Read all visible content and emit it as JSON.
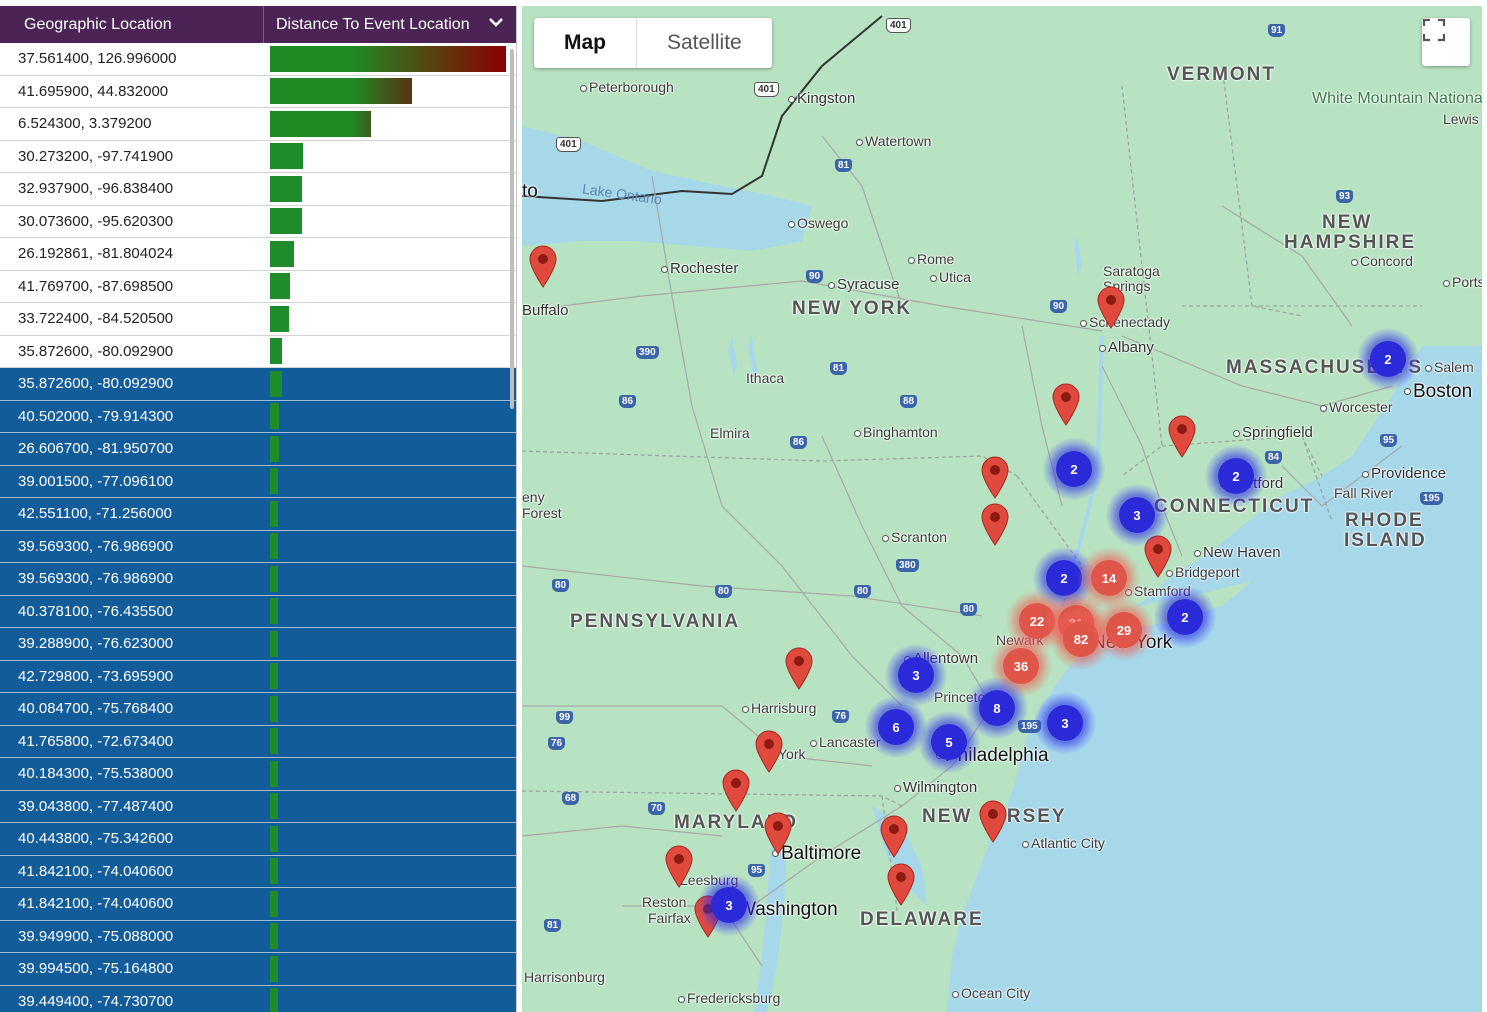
{
  "table": {
    "col_location": "Geographic Location",
    "col_distance": "Distance To Event Location",
    "rows": [
      {
        "coord": "37.561400, 126.996000",
        "value": 1.0,
        "selected": false
      },
      {
        "coord": "41.695900, 44.832000",
        "value": 0.6,
        "selected": false
      },
      {
        "coord": "6.524300, 3.379200",
        "value": 0.43,
        "selected": false
      },
      {
        "coord": "30.273200, -97.741900",
        "value": 0.14,
        "selected": false
      },
      {
        "coord": "32.937900, -96.838400",
        "value": 0.135,
        "selected": false
      },
      {
        "coord": "30.073600, -95.620300",
        "value": 0.135,
        "selected": false
      },
      {
        "coord": "26.192861, -81.804024",
        "value": 0.1,
        "selected": false
      },
      {
        "coord": "41.769700, -87.698500",
        "value": 0.085,
        "selected": false
      },
      {
        "coord": "33.722400, -84.520500",
        "value": 0.08,
        "selected": false
      },
      {
        "coord": "35.872600, -80.092900",
        "value": 0.05,
        "selected": false
      },
      {
        "coord": "35.872600, -80.092900",
        "value": 0.05,
        "selected": true
      },
      {
        "coord": "40.502000, -79.914300",
        "value": 0.04,
        "selected": true
      },
      {
        "coord": "26.606700, -81.950700",
        "value": 0.04,
        "selected": true
      },
      {
        "coord": "39.001500, -77.096100",
        "value": 0.03,
        "selected": true
      },
      {
        "coord": "42.551100, -71.256000",
        "value": 0.03,
        "selected": true
      },
      {
        "coord": "39.569300, -76.986900",
        "value": 0.03,
        "selected": true
      },
      {
        "coord": "39.569300, -76.986900",
        "value": 0.03,
        "selected": true
      },
      {
        "coord": "40.378100, -76.435500",
        "value": 0.03,
        "selected": true
      },
      {
        "coord": "39.288900, -76.623000",
        "value": 0.03,
        "selected": true
      },
      {
        "coord": "42.729800, -73.695900",
        "value": 0.03,
        "selected": true
      },
      {
        "coord": "40.084700, -75.768400",
        "value": 0.03,
        "selected": true
      },
      {
        "coord": "41.765800, -72.673400",
        "value": 0.03,
        "selected": true
      },
      {
        "coord": "40.184300, -75.538000",
        "value": 0.03,
        "selected": true
      },
      {
        "coord": "39.043800, -77.487400",
        "value": 0.03,
        "selected": true
      },
      {
        "coord": "40.443800, -75.342600",
        "value": 0.03,
        "selected": true
      },
      {
        "coord": "41.842100, -74.040600",
        "value": 0.03,
        "selected": true
      },
      {
        "coord": "41.842100, -74.040600",
        "value": 0.03,
        "selected": true
      },
      {
        "coord": "39.949900, -75.088000",
        "value": 0.03,
        "selected": true
      },
      {
        "coord": "39.994500, -75.164800",
        "value": 0.03,
        "selected": true
      },
      {
        "coord": "39.449400, -74.730700",
        "value": 0.03,
        "selected": true
      }
    ]
  },
  "map": {
    "type_map": "Map",
    "type_satellite": "Satellite",
    "active_type": "Map",
    "clusters": [
      {
        "count": "2",
        "color": "blue"
      },
      {
        "count": "2",
        "color": "blue"
      },
      {
        "count": "2",
        "color": "blue"
      },
      {
        "count": "3",
        "color": "blue"
      },
      {
        "count": "2",
        "color": "blue"
      },
      {
        "count": "14",
        "color": "red"
      },
      {
        "count": "22",
        "color": "red"
      },
      {
        "count": "31",
        "color": "red"
      },
      {
        "count": "82",
        "color": "red"
      },
      {
        "count": "29",
        "color": "red"
      },
      {
        "count": "2",
        "color": "blue"
      },
      {
        "count": "36",
        "color": "red"
      },
      {
        "count": "3",
        "color": "blue"
      },
      {
        "count": "8",
        "color": "blue"
      },
      {
        "count": "6",
        "color": "blue"
      },
      {
        "count": "5",
        "color": "blue"
      },
      {
        "count": "3",
        "color": "blue"
      },
      {
        "count": "3",
        "color": "blue"
      }
    ],
    "labels": {
      "vermont": "VERMONT",
      "new_hampshire": "NEW HAMPSHIRE",
      "massachusetts": "MASSACHUSETTS",
      "connecticut": "CONNECTICUT",
      "rhode_island": "RHODE ISLAND",
      "new_york": "NEW YORK",
      "pennsylvania": "PENNSYLVANIA",
      "new_jersey": "NEW JERSEY",
      "maryland": "MARYLAND",
      "delaware": "DELAWARE",
      "white_mountain": "White Mountain National Forest",
      "lake_ontario": "Lake Ontario",
      "peterborough": "Peterborough",
      "kingston": "Kingston",
      "watertown": "Watertown",
      "oswego": "Oswego",
      "rochester": "Rochester",
      "buffalo": "Buffalo",
      "syracuse": "Syracuse",
      "rome": "Rome",
      "utica": "Utica",
      "saratoga": "Saratoga Springs",
      "schenectady": "Schenectady",
      "albany": "Albany",
      "ithaca": "Ithaca",
      "elmira": "Elmira",
      "binghamton": "Binghamton",
      "concord": "Concord",
      "lewis": "Lewis",
      "portsmouth": "Ports",
      "salem": "Salem",
      "boston": "Boston",
      "worcester": "Worcester",
      "springfield": "Springfield",
      "hartford": "Hartford",
      "providence": "Providence",
      "fall_river": "Fall River",
      "new_haven": "New Haven",
      "bridgeport": "Bridgeport",
      "stamford": "Stamford",
      "newark": "Newark",
      "new_york_city": "New York",
      "scranton": "Scranton",
      "allentown": "Allentown",
      "princeton": "Princeton",
      "harrisburg": "Harrisburg",
      "lancaster": "Lancaster",
      "york": "York",
      "philadelphia": "Philadelphia",
      "wilmington": "Wilmington",
      "atlantic_city": "Atlantic City",
      "baltimore": "Baltimore",
      "leesburg": "Leesburg",
      "reston": "Reston",
      "fairfax": "Fairfax",
      "washington": "Washington",
      "harrisonburg": "Harrisonburg",
      "fredericksburg": "Fredericksburg",
      "ocean_city": "Ocean City",
      "toronto_frag": "to",
      "forest_frag": "eny Forest"
    }
  }
}
